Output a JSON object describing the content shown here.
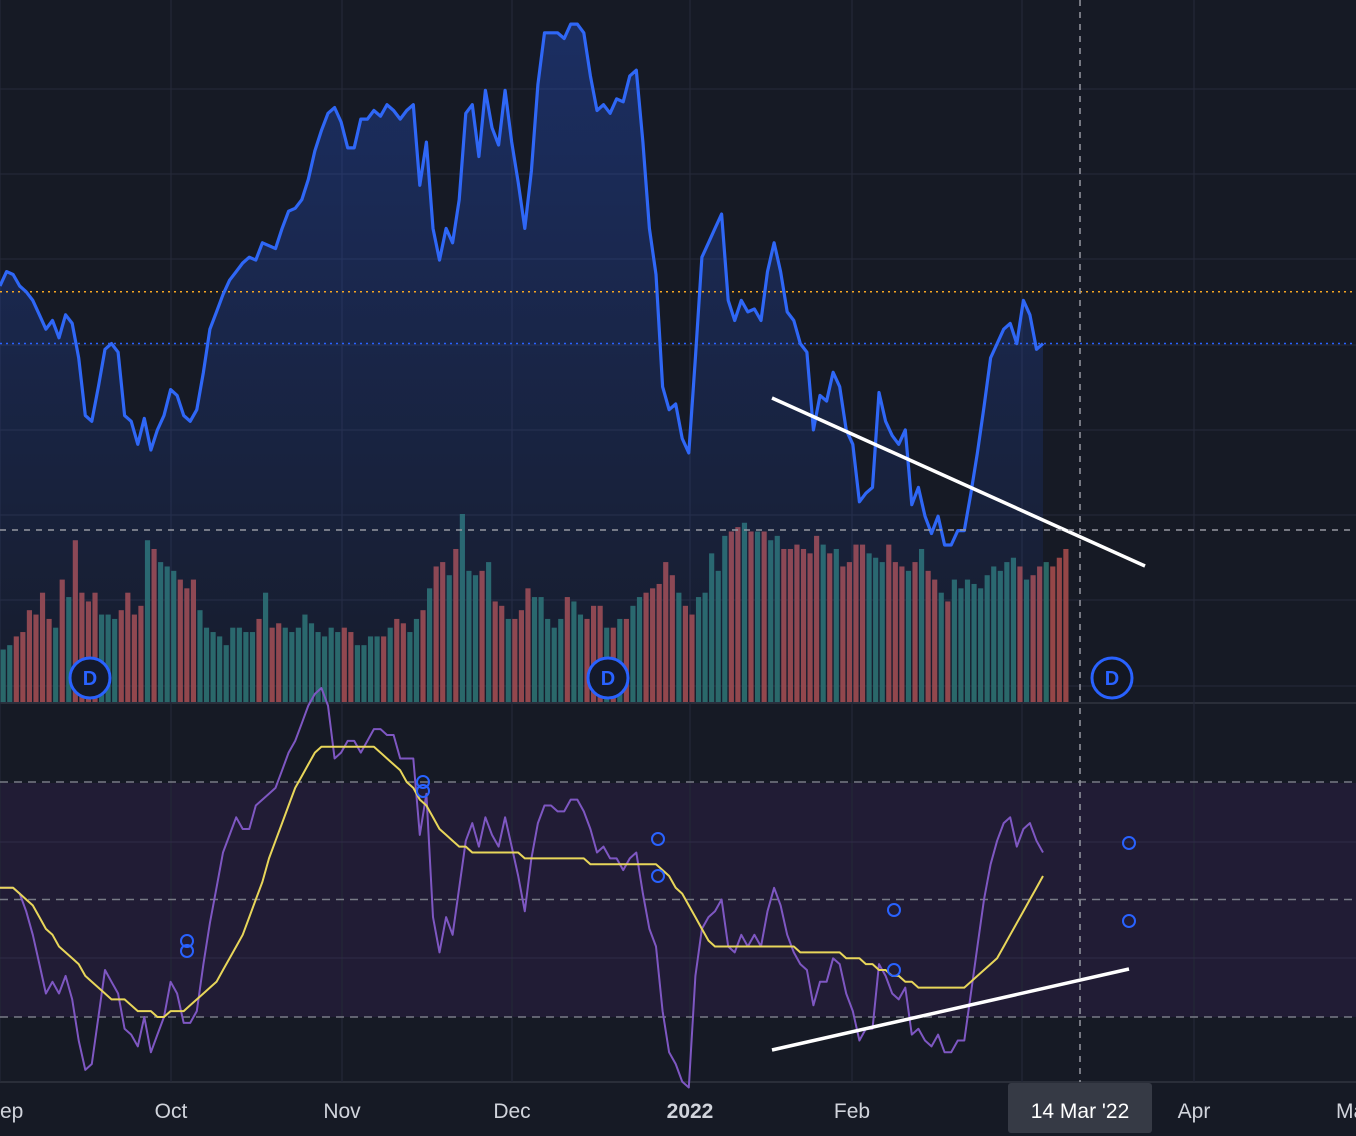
{
  "chart_data": [
    {
      "type": "area",
      "grid": true,
      "legend": "none",
      "x_axis": {
        "ticks": [
          {
            "label": "ep",
            "bold": false
          },
          {
            "label": "Oct",
            "bold": false
          },
          {
            "label": "Nov",
            "bold": false
          },
          {
            "label": "Dec",
            "bold": false
          },
          {
            "label": "2022",
            "bold": true
          },
          {
            "label": "Feb",
            "bold": false
          },
          {
            "label": "Apr",
            "bold": false
          },
          {
            "label": "Ma",
            "bold": false
          }
        ]
      },
      "crosshair": {
        "label": "14 Mar '22"
      },
      "dividend_markers": [
        {
          "label": "D"
        },
        {
          "label": "D"
        },
        {
          "label": "D"
        }
      ],
      "price_line": {
        "values": [
          4.1,
          4.15,
          4.14,
          4.1,
          4.08,
          4.05,
          4.0,
          3.95,
          3.98,
          3.92,
          4.0,
          3.97,
          3.85,
          3.65,
          3.63,
          3.75,
          3.88,
          3.9,
          3.87,
          3.65,
          3.63,
          3.55,
          3.64,
          3.53,
          3.6,
          3.65,
          3.74,
          3.72,
          3.65,
          3.63,
          3.67,
          3.8,
          3.95,
          4.01,
          4.07,
          4.12,
          4.15,
          4.18,
          4.2,
          4.19,
          4.25,
          4.24,
          4.23,
          4.3,
          4.36,
          4.37,
          4.4,
          4.47,
          4.57,
          4.64,
          4.7,
          4.72,
          4.67,
          4.58,
          4.58,
          4.68,
          4.68,
          4.71,
          4.69,
          4.73,
          4.71,
          4.68,
          4.71,
          4.73,
          4.45,
          4.6,
          4.3,
          4.19,
          4.3,
          4.25,
          4.4,
          4.7,
          4.73,
          4.55,
          4.78,
          4.65,
          4.59,
          4.78,
          4.6,
          4.46,
          4.3,
          4.5,
          4.8,
          4.98,
          4.98,
          4.98,
          4.96,
          5.01,
          5.01,
          4.98,
          4.83,
          4.71,
          4.73,
          4.7,
          4.75,
          4.74,
          4.83,
          4.85,
          4.6,
          4.3,
          4.14,
          3.75,
          3.67,
          3.69,
          3.57,
          3.52,
          3.85,
          4.2,
          4.25,
          4.3,
          4.35,
          4.05,
          3.98,
          4.05,
          4.01,
          4.02,
          3.98,
          4.15,
          4.25,
          4.15,
          4.01,
          3.98,
          3.9,
          3.87,
          3.6,
          3.72,
          3.7,
          3.8,
          3.75,
          3.6,
          3.55,
          3.35,
          3.38,
          3.4,
          3.73,
          3.63,
          3.58,
          3.55,
          3.6,
          3.34,
          3.4,
          3.3,
          3.24,
          3.3,
          3.2,
          3.2,
          3.25,
          3.25,
          3.38,
          3.52,
          3.68,
          3.85,
          3.9,
          3.95,
          3.97,
          3.9,
          4.05,
          4.0,
          3.88,
          3.9
        ]
      },
      "overbought_level": 4.08
    },
    {
      "type": "bar",
      "series": [
        {
          "name": "",
          "values": [
            1.2,
            1.3,
            1.5,
            1.6,
            2.1,
            2.0,
            2.5,
            1.9,
            1.7,
            2.8,
            2.4,
            3.7,
            2.5,
            2.3,
            2.5,
            2.0,
            2.0,
            1.9,
            2.1,
            2.5,
            2.0,
            2.2,
            3.7,
            3.5,
            3.2,
            3.1,
            3.0,
            2.8,
            2.6,
            2.8,
            2.1,
            1.7,
            1.6,
            1.5,
            1.3,
            1.7,
            1.7,
            1.6,
            1.6,
            1.9,
            2.5,
            1.7,
            1.8,
            1.7,
            1.6,
            1.7,
            2.0,
            1.8,
            1.6,
            1.5,
            1.7,
            1.6,
            1.7,
            1.6,
            1.3,
            1.3,
            1.5,
            1.5,
            1.5,
            1.7,
            1.9,
            1.8,
            1.6,
            1.9,
            2.1,
            2.6,
            3.1,
            3.2,
            2.9,
            3.5,
            4.3,
            3.0,
            2.9,
            3.0,
            3.2,
            2.3,
            2.2,
            1.9,
            1.9,
            2.1,
            2.6,
            2.4,
            2.4,
            1.9,
            1.7,
            1.9,
            2.4,
            2.3,
            2.0,
            1.9,
            2.2,
            2.2,
            1.7,
            1.7,
            1.9,
            1.9,
            2.2,
            2.4,
            2.5,
            2.6,
            2.7,
            3.2,
            2.9,
            2.5,
            2.2,
            2.0,
            2.4,
            2.5,
            3.4,
            3.0,
            3.8,
            3.9,
            4.0,
            4.1,
            3.9,
            3.9,
            3.9,
            3.7,
            3.8,
            3.5,
            3.5,
            3.6,
            3.5,
            3.4,
            3.8,
            3.6,
            3.4,
            3.5,
            3.1,
            3.2,
            3.6,
            3.6,
            3.4,
            3.3,
            3.2,
            3.6,
            3.2,
            3.1,
            3.0,
            3.2,
            3.5,
            3.0,
            2.8,
            2.5,
            2.3,
            2.8,
            2.6,
            2.8,
            2.7,
            2.6,
            2.9,
            3.1,
            3.0,
            3.2,
            3.3,
            3.1,
            2.8,
            2.9,
            3.1,
            3.2,
            3.1,
            3.3,
            3.5
          ]
        }
      ]
    },
    {
      "type": "line",
      "grid": true,
      "levels": [
        70,
        50,
        30
      ],
      "series": [
        {
          "name": "",
          "values": [
            52,
            52,
            52,
            51,
            48,
            44,
            39,
            34,
            36,
            34,
            37,
            33,
            26,
            21,
            22,
            30,
            38,
            36,
            34,
            28,
            27,
            25,
            30,
            24,
            27,
            30,
            36,
            34,
            29,
            29,
            31,
            39,
            46,
            52,
            58,
            61,
            64,
            62,
            62,
            66,
            67,
            68,
            69,
            72,
            75,
            77,
            80,
            83,
            85,
            86,
            83,
            74,
            75,
            77,
            77,
            75,
            77,
            79,
            79,
            78,
            78,
            74,
            74,
            74,
            61,
            68,
            47,
            41,
            47,
            44,
            52,
            60,
            63,
            59,
            64,
            61,
            59,
            64,
            59,
            54,
            48,
            57,
            63,
            66,
            66,
            65,
            65,
            67,
            67,
            65,
            62,
            58,
            59,
            57,
            57,
            55,
            57,
            58,
            51,
            45,
            42,
            31,
            24,
            22,
            19,
            18,
            37,
            45,
            47,
            48,
            50,
            42,
            41,
            44,
            42,
            44,
            42,
            48,
            52,
            49,
            44,
            41,
            39,
            38,
            32,
            36,
            36,
            40,
            39,
            34,
            31,
            26,
            28,
            28,
            39,
            37,
            34,
            33,
            35,
            27,
            28,
            26,
            25,
            27,
            24,
            24,
            26,
            26,
            34,
            42,
            50,
            56,
            60,
            63,
            64,
            59,
            62,
            63,
            60,
            58
          ]
        },
        {
          "name": "",
          "values": [
            52,
            52,
            52,
            51,
            50,
            49,
            47,
            45,
            44,
            42,
            41,
            40,
            39,
            37,
            36,
            35,
            34,
            33,
            33,
            33,
            32,
            31,
            31,
            31,
            30,
            30,
            31,
            31,
            31,
            32,
            33,
            34,
            35,
            36,
            38,
            40,
            42,
            44,
            47,
            50,
            53,
            57,
            60,
            63,
            66,
            69,
            71,
            73,
            75,
            76,
            76,
            76,
            76,
            76,
            76,
            76,
            76,
            76,
            75,
            74,
            73,
            72,
            70,
            69,
            67,
            66,
            64,
            62,
            61,
            60,
            59,
            59,
            58,
            58,
            58,
            58,
            58,
            58,
            58,
            58,
            57,
            57,
            57,
            57,
            57,
            57,
            57,
            57,
            57,
            57,
            56,
            56,
            56,
            56,
            56,
            56,
            56,
            56,
            56,
            56,
            56,
            55,
            54,
            52,
            51,
            49,
            47,
            45,
            43,
            42,
            42,
            42,
            42,
            42,
            42,
            42,
            42,
            42,
            42,
            42,
            42,
            42,
            41,
            41,
            41,
            41,
            41,
            41,
            41,
            40,
            40,
            40,
            39,
            39,
            38,
            38,
            37,
            37,
            36,
            36,
            35,
            35,
            35,
            35,
            35,
            35,
            35,
            35,
            36,
            37,
            38,
            39,
            40,
            42,
            44,
            46,
            48,
            50,
            52,
            54
          ]
        }
      ]
    }
  ]
}
